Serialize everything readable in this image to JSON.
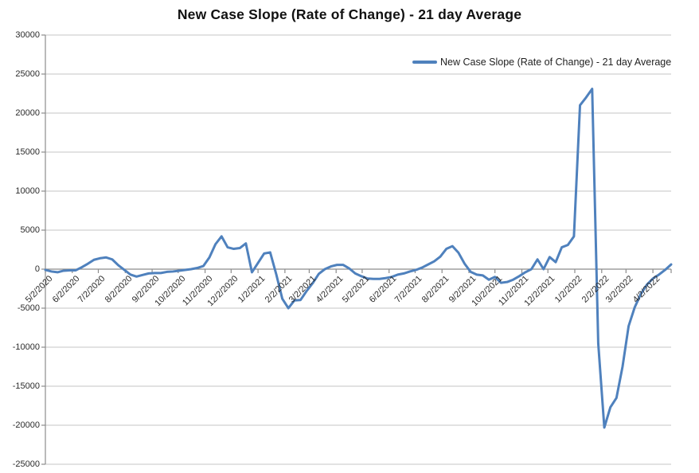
{
  "chart_data": {
    "type": "line",
    "title": "New Case Slope (Rate of Change) - 21 day Average",
    "legend": "New Case Slope (Rate of Change) - 21 day Average",
    "legend_position": "top-right",
    "grid": true,
    "line_color": "#4F81BD",
    "gridline_color": "#C6C6C6",
    "axis_color": "#8C8C8C",
    "ylim": [
      -25000,
      30000
    ],
    "ylabel": "",
    "xlabel": "",
    "y_ticks": [
      30000,
      25000,
      20000,
      15000,
      10000,
      5000,
      0,
      -5000,
      -10000,
      -15000,
      -20000,
      -25000
    ],
    "x_ticks": [
      {
        "label": "5/2/2020",
        "day": 0
      },
      {
        "label": "6/2/2020",
        "day": 31
      },
      {
        "label": "7/2/2020",
        "day": 61
      },
      {
        "label": "8/2/2020",
        "day": 92
      },
      {
        "label": "9/2/2020",
        "day": 123
      },
      {
        "label": "10/2/2020",
        "day": 153
      },
      {
        "label": "11/2/2020",
        "day": 184
      },
      {
        "label": "12/2/2020",
        "day": 214
      },
      {
        "label": "1/2/2021",
        "day": 245
      },
      {
        "label": "2/2/2021",
        "day": 276
      },
      {
        "label": "3/2/2021",
        "day": 304
      },
      {
        "label": "4/2/2021",
        "day": 335
      },
      {
        "label": "5/2/2021",
        "day": 365
      },
      {
        "label": "6/2/2021",
        "day": 396
      },
      {
        "label": "7/2/2021",
        "day": 426
      },
      {
        "label": "8/2/2021",
        "day": 457
      },
      {
        "label": "9/2/2021",
        "day": 488
      },
      {
        "label": "10/2/2021",
        "day": 518
      },
      {
        "label": "11/2/2021",
        "day": 549
      },
      {
        "label": "12/2/2021",
        "day": 579
      },
      {
        "label": "1/2/2022",
        "day": 610
      },
      {
        "label": "2/2/2022",
        "day": 641
      },
      {
        "label": "3/2/2022",
        "day": 669
      },
      {
        "label": "4/2/2022",
        "day": 700
      }
    ],
    "x": [
      "5/2/2020",
      "5/9/2020",
      "5/16/2020",
      "5/23/2020",
      "5/30/2020",
      "6/6/2020",
      "6/13/2020",
      "6/20/2020",
      "6/27/2020",
      "7/4/2020",
      "7/11/2020",
      "7/18/2020",
      "7/25/2020",
      "8/1/2020",
      "8/8/2020",
      "8/15/2020",
      "8/22/2020",
      "8/29/2020",
      "9/5/2020",
      "9/12/2020",
      "9/19/2020",
      "9/26/2020",
      "10/3/2020",
      "10/10/2020",
      "10/17/2020",
      "10/24/2020",
      "10/31/2020",
      "11/7/2020",
      "11/14/2020",
      "11/21/2020",
      "11/28/2020",
      "12/5/2020",
      "12/12/2020",
      "12/19/2020",
      "12/26/2020",
      "1/2/2021",
      "1/9/2021",
      "1/16/2021",
      "1/23/2021",
      "1/30/2021",
      "2/6/2021",
      "2/13/2021",
      "2/20/2021",
      "2/27/2021",
      "3/6/2021",
      "3/13/2021",
      "3/20/2021",
      "3/27/2021",
      "4/3/2021",
      "4/10/2021",
      "4/17/2021",
      "4/24/2021",
      "5/1/2021",
      "5/8/2021",
      "5/15/2021",
      "5/22/2021",
      "5/29/2021",
      "6/5/2021",
      "6/12/2021",
      "6/19/2021",
      "6/26/2021",
      "7/3/2021",
      "7/10/2021",
      "7/17/2021",
      "7/24/2021",
      "7/31/2021",
      "8/7/2021",
      "8/14/2021",
      "8/21/2021",
      "8/28/2021",
      "9/4/2021",
      "9/11/2021",
      "9/18/2021",
      "9/25/2021",
      "10/2/2021",
      "10/9/2021",
      "10/16/2021",
      "10/23/2021",
      "10/30/2021",
      "11/6/2021",
      "11/13/2021",
      "11/20/2021",
      "11/27/2021",
      "12/4/2021",
      "12/11/2021",
      "12/18/2021",
      "12/25/2021",
      "1/1/2022",
      "1/8/2022",
      "1/15/2022",
      "1/22/2022",
      "1/29/2022",
      "2/5/2022",
      "2/12/2022",
      "2/19/2022",
      "2/26/2022",
      "3/5/2022",
      "3/12/2022",
      "3/19/2022",
      "3/26/2022",
      "4/2/2022",
      "4/9/2022",
      "4/16/2022",
      "4/23/2022"
    ],
    "values": [
      -100,
      -300,
      -400,
      -200,
      -150,
      -150,
      250,
      700,
      1200,
      1400,
      1500,
      1250,
      500,
      -100,
      -700,
      -950,
      -750,
      -550,
      -500,
      -500,
      -350,
      -300,
      -200,
      -100,
      0,
      150,
      400,
      1500,
      3200,
      4200,
      2800,
      2600,
      2700,
      3300,
      -400,
      800,
      2000,
      2150,
      -650,
      -3800,
      -5000,
      -4000,
      -3950,
      -2800,
      -1800,
      -600,
      0,
      350,
      550,
      550,
      100,
      -550,
      -900,
      -1200,
      -1250,
      -1250,
      -1150,
      -1000,
      -700,
      -550,
      -300,
      -100,
      200,
      600,
      1000,
      1600,
      2600,
      2950,
      2100,
      700,
      -350,
      -700,
      -800,
      -1350,
      -1000,
      -1750,
      -1650,
      -1350,
      -900,
      -400,
      0,
      1250,
      0,
      1550,
      900,
      2800,
      3100,
      4200,
      21000,
      22000,
      23100,
      -9500,
      -20300,
      -17700,
      -16500,
      -12500,
      -7300,
      -4900,
      -3200,
      -2000,
      -1200,
      -700,
      -100,
      600
    ]
  }
}
